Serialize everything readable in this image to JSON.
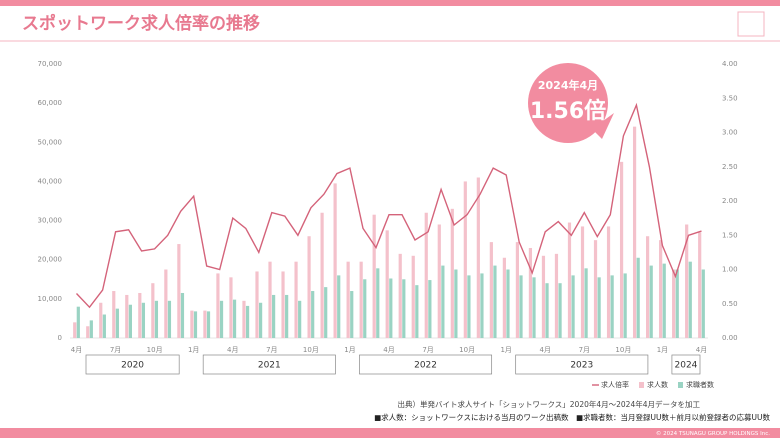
{
  "title": "スポットワーク求人倍率の推移",
  "chart_data": {
    "type": "bar-line",
    "categories": [
      "4月",
      null,
      null,
      "7月",
      null,
      null,
      "10月",
      null,
      null,
      "1月",
      null,
      null,
      "4月",
      null,
      null,
      "7月",
      null,
      null,
      "10月",
      null,
      null,
      "1月",
      null,
      null,
      "4月",
      null,
      null,
      "7月",
      null,
      null,
      "10月",
      null,
      null,
      "1月",
      null,
      null,
      "4月",
      null,
      null,
      "7月",
      null,
      null,
      "10月",
      null,
      null,
      "1月",
      null,
      null,
      "4月"
    ],
    "years": [
      "2020",
      "2021",
      "2022",
      "2023",
      "2024"
    ],
    "series": [
      {
        "name": "求人倍率",
        "color": "#d4637a",
        "axis": "y2",
        "kind": "line",
        "values": [
          0.65,
          0.45,
          0.7,
          1.55,
          1.58,
          1.27,
          1.3,
          1.5,
          1.85,
          2.07,
          1.05,
          1.0,
          1.75,
          1.6,
          1.25,
          1.83,
          1.78,
          1.5,
          1.9,
          2.1,
          2.4,
          2.48,
          1.6,
          1.32,
          1.8,
          1.8,
          1.43,
          1.55,
          2.17,
          1.65,
          1.8,
          2.1,
          2.48,
          2.38,
          1.4,
          0.95,
          1.55,
          1.7,
          1.5,
          1.83,
          1.48,
          1.8,
          2.95,
          3.4,
          2.5,
          1.35,
          0.9,
          1.5,
          1.56
        ]
      },
      {
        "name": "求人数",
        "color": "#f4c1cb",
        "kind": "bar",
        "values": [
          4000,
          3000,
          9000,
          12000,
          11000,
          11500,
          14000,
          17500,
          24000,
          7000,
          7000,
          16500,
          15500,
          9500,
          17000,
          19500,
          17000,
          19500,
          26000,
          32000,
          39500,
          19500,
          19500,
          31500,
          27500,
          21500,
          21000,
          32000,
          29000,
          33000,
          40000,
          41000,
          24500,
          20500,
          24500,
          23000,
          21000,
          21500,
          29500,
          28500,
          25000,
          28500,
          45000,
          54000,
          26000,
          25000,
          17500,
          29000,
          27000
        ]
      },
      {
        "name": "求職者数",
        "color": "#9ad3c3",
        "kind": "bar",
        "values": [
          8000,
          4500,
          6000,
          7500,
          8500,
          9000,
          9500,
          9500,
          11500,
          6800,
          6800,
          9500,
          9800,
          8200,
          9000,
          11000,
          11000,
          9500,
          12000,
          13000,
          16000,
          12000,
          15000,
          17800,
          15200,
          15000,
          13500,
          14800,
          18500,
          17500,
          16000,
          16500,
          18500,
          17500,
          16000,
          15500,
          14000,
          14000,
          16000,
          17800,
          15500,
          16000,
          16500,
          20500,
          18500,
          19000,
          17500,
          19500,
          17500
        ]
      }
    ],
    "ylim": [
      0,
      70000
    ],
    "yticks": [
      0,
      {
        "value": 10000,
        "label": "10,000"
      },
      {
        "value": 20000,
        "label": "20,000"
      },
      {
        "value": 30000,
        "label": "30,000"
      },
      {
        "value": 40000,
        "label": "40,000"
      },
      {
        "value": 50000,
        "label": "50,000"
      },
      {
        "value": 60000,
        "label": "60,000"
      },
      {
        "value": 70000,
        "label": "70,000"
      }
    ],
    "y2lim": [
      0,
      4
    ],
    "y2ticks": [
      {
        "value": 0,
        "label": "0.00"
      },
      {
        "value": 0.5,
        "label": "0.50"
      },
      {
        "value": 1,
        "label": "1.00"
      },
      {
        "value": 1.5,
        "label": "1.50"
      },
      {
        "value": 2,
        "label": "2.00"
      },
      {
        "value": 2.5,
        "label": "2.50"
      },
      {
        "value": 3,
        "label": "3.00"
      },
      {
        "value": 3.5,
        "label": "3.50"
      },
      {
        "value": 4,
        "label": "4.00"
      }
    ],
    "grid": false,
    "annotation": {
      "date": "2024年4月",
      "value": "1.56倍"
    }
  },
  "source": "出典）単発バイト求人サイト「ショットワークス」2020年4月～2024年4月データを加工",
  "note": "■求人数：ショットワークスにおける当月のワーク出稿数　■求職者数：当月登録UU数＋前月以前登録者の応募UU数",
  "copyright": "© 2024 TSUNAGU GROUP HOLDINGS Inc."
}
